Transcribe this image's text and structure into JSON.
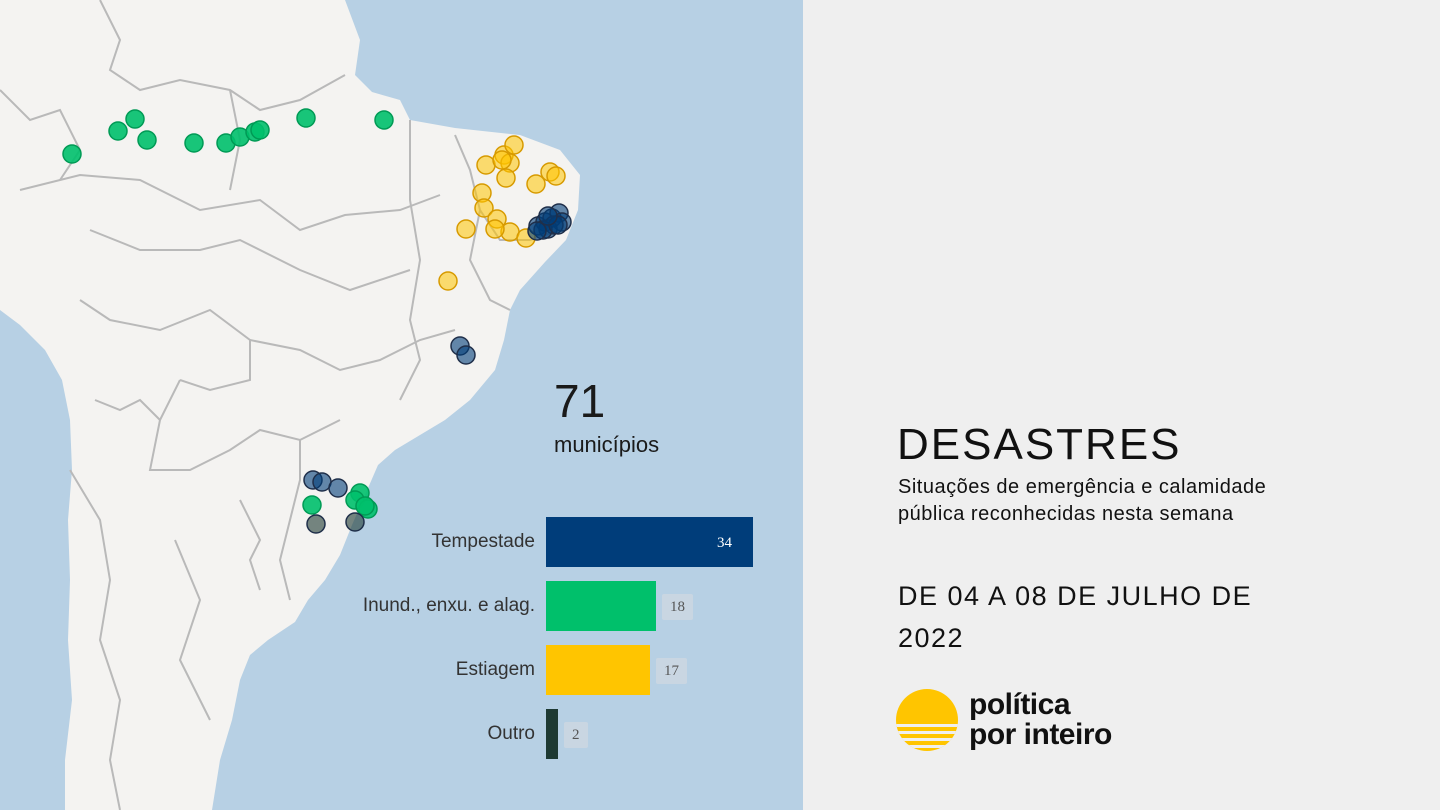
{
  "summary": {
    "total": "71",
    "unit_label": "municípios"
  },
  "legend_bars": [
    {
      "label": "Tempestade",
      "value": 34,
      "color": "#003d7a"
    },
    {
      "label": "Inund., enxu. e alag.",
      "value": 18,
      "color": "#00c06b"
    },
    {
      "label": "Estiagem",
      "value": 17,
      "color": "#ffc500"
    },
    {
      "label": "Outro",
      "value": 2,
      "color": "#1e3a33"
    }
  ],
  "panel": {
    "title": "DESASTRES",
    "subtitle": "Situações de emergência e calamidade pública reconhecidas nesta semana",
    "date_range": "DE 04 A 08 DE JULHO DE 2022"
  },
  "brand": {
    "line1": "política",
    "line2": "por inteiro",
    "logo_color": "#ffc500"
  },
  "map": {
    "colors": {
      "land": "#f4f3f1",
      "ocean": "#b7d0e4",
      "border": "#b9b9b9"
    },
    "markers": [
      {
        "type": "Inund., enxu. e alag."
      },
      {
        "type": "Inund., enxu. e alag."
      },
      {
        "type": "Inund., enxu. e alag."
      },
      {
        "type": "Inund., enxu. e alag."
      },
      {
        "type": "Inund., enxu. e alag."
      },
      {
        "type": "Inund., enxu. e alag."
      },
      {
        "type": "Inund., enxu. e alag."
      },
      {
        "type": "Inund., enxu. e alag."
      },
      {
        "type": "Inund., enxu. e alag."
      },
      {
        "type": "Inund., enxu. e alag."
      },
      {
        "type": "Inund., enxu. e alag."
      },
      {
        "type": "Estiagem"
      },
      {
        "type": "Estiagem"
      },
      {
        "type": "Estiagem"
      },
      {
        "type": "Estiagem"
      },
      {
        "type": "Estiagem"
      },
      {
        "type": "Estiagem"
      },
      {
        "type": "Estiagem"
      },
      {
        "type": "Estiagem"
      },
      {
        "type": "Estiagem"
      },
      {
        "type": "Estiagem"
      },
      {
        "type": "Estiagem"
      },
      {
        "type": "Estiagem"
      },
      {
        "type": "Estiagem"
      },
      {
        "type": "Estiagem"
      },
      {
        "type": "Estiagem"
      },
      {
        "type": "Estiagem"
      },
      {
        "type": "Estiagem"
      },
      {
        "type": "Tempestade"
      },
      {
        "type": "Tempestade"
      },
      {
        "type": "Tempestade"
      },
      {
        "type": "Tempestade"
      },
      {
        "type": "Tempestade"
      },
      {
        "type": "Tempestade"
      },
      {
        "type": "Tempestade"
      },
      {
        "type": "Tempestade"
      },
      {
        "type": "Tempestade"
      },
      {
        "type": "Tempestade"
      },
      {
        "type": "Tempestade"
      },
      {
        "type": "Tempestade"
      },
      {
        "type": "Tempestade"
      },
      {
        "type": "Tempestade"
      },
      {
        "type": "Tempestade"
      },
      {
        "type": "Tempestade"
      },
      {
        "type": "Inund., enxu. e alag."
      },
      {
        "type": "Inund., enxu. e alag."
      },
      {
        "type": "Inund., enxu. e alag."
      },
      {
        "type": "Inund., enxu. e alag."
      },
      {
        "type": "Inund., enxu. e alag."
      },
      {
        "type": "Outro"
      },
      {
        "type": "Outro"
      }
    ]
  }
}
